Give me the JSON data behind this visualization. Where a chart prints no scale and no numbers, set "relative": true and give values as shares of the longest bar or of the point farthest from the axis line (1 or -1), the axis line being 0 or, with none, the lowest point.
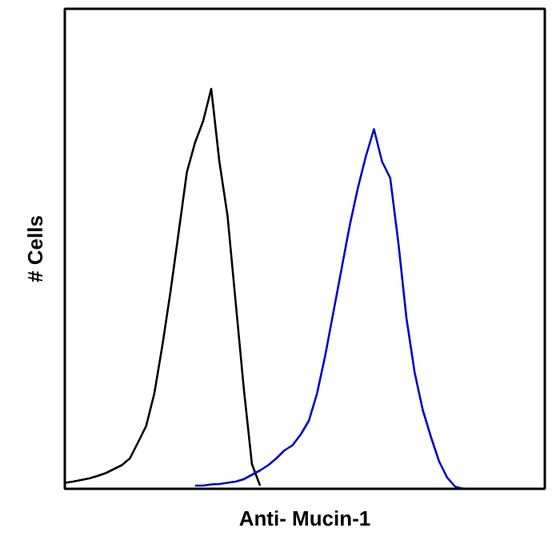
{
  "chart_data": {
    "type": "line",
    "relative": true,
    "xlabel": "Anti- Mucin-1",
    "ylabel": "# Cells",
    "categories": [
      null,
      null,
      null,
      null,
      null,
      null,
      null,
      null,
      null,
      null,
      null,
      null,
      null,
      null,
      null,
      null,
      null,
      null,
      null,
      null,
      null,
      null,
      null,
      null,
      null,
      null,
      null,
      null,
      null,
      null,
      null,
      null,
      null,
      null,
      null,
      null,
      null,
      null,
      null,
      null,
      null,
      null,
      null,
      null,
      null,
      null,
      null,
      null,
      null,
      null,
      null,
      null,
      null,
      null,
      null,
      null,
      null,
      null,
      null,
      null
    ],
    "series": [
      {
        "color": "#000000",
        "values": [
          0.015,
          0.018,
          0.022,
          0.026,
          0.032,
          0.039,
          0.049,
          0.059,
          0.076,
          0.116,
          0.157,
          0.238,
          0.359,
          0.494,
          0.642,
          0.791,
          0.865,
          0.919,
          1.0,
          0.818,
          0.683,
          0.467,
          0.251,
          0.062,
          0.008,
          null,
          null,
          null,
          null,
          null,
          null,
          null,
          null,
          null,
          null,
          null,
          null,
          null,
          null,
          null,
          null,
          null,
          null,
          null,
          null,
          null,
          null,
          null,
          null,
          null,
          null,
          null,
          null,
          null,
          null,
          null,
          null,
          null,
          null,
          null
        ]
      },
      {
        "color": "#0000cc",
        "values": [
          null,
          null,
          null,
          null,
          null,
          null,
          null,
          null,
          null,
          null,
          null,
          null,
          null,
          null,
          null,
          null,
          0.008,
          0.008,
          0.011,
          0.012,
          0.015,
          0.018,
          0.024,
          0.035,
          0.046,
          0.059,
          0.076,
          0.096,
          0.109,
          0.136,
          0.17,
          0.238,
          0.332,
          0.44,
          0.548,
          0.656,
          0.75,
          0.831,
          0.899,
          0.818,
          0.777,
          0.615,
          0.426,
          0.291,
          0.197,
          0.13,
          0.069,
          0.028,
          0.005,
          0.0,
          null,
          null,
          null,
          null,
          null,
          null,
          null,
          null,
          null,
          null
        ]
      }
    ]
  }
}
